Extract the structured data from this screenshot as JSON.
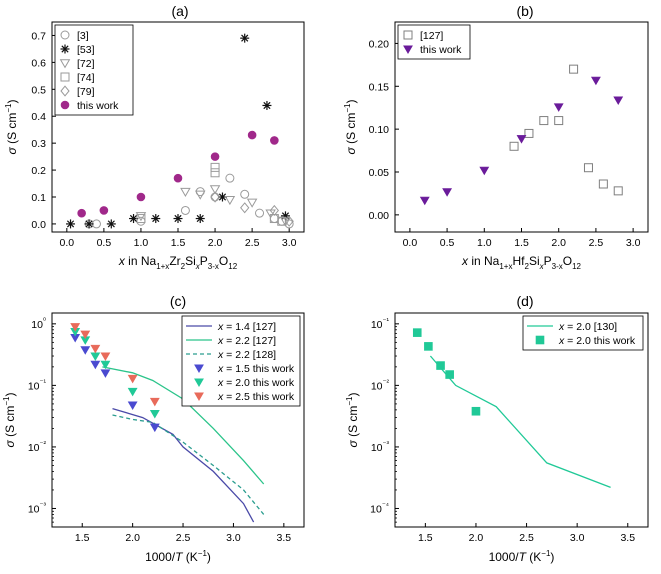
{
  "chart_data": [
    {
      "panel": "(a)",
      "type": "scatter",
      "ylabel": "σ (S cm⁻¹)",
      "xlabel": "x in Na1+xZr2SixP3-xO12",
      "xlim": [
        -0.2,
        3.2
      ],
      "ylim": [
        -0.03,
        0.75
      ],
      "xticks": [
        0.0,
        0.5,
        1.0,
        1.5,
        2.0,
        2.5,
        3.0
      ],
      "yticks": [
        0.0,
        0.1,
        0.2,
        0.3,
        0.4,
        0.5,
        0.6,
        0.7
      ],
      "legend_position": "top-left",
      "series": [
        {
          "name": "[3]",
          "marker": "circle-open",
          "color": "#9a9a9a",
          "points": [
            [
              0.3,
              0.0
            ],
            [
              0.4,
              0.0
            ],
            [
              1.0,
              0.01
            ],
            [
              1.6,
              0.05
            ],
            [
              1.8,
              0.12
            ],
            [
              2.0,
              0.1
            ],
            [
              2.2,
              0.17
            ],
            [
              2.4,
              0.11
            ],
            [
              2.6,
              0.04
            ],
            [
              2.8,
              0.02
            ],
            [
              2.9,
              0.01
            ],
            [
              3.0,
              0.0
            ]
          ]
        },
        {
          "name": "[53]",
          "marker": "asterisk",
          "color": "#111111",
          "points": [
            [
              0.05,
              0.0
            ],
            [
              0.3,
              0.0
            ],
            [
              0.6,
              0.0
            ],
            [
              0.9,
              0.02
            ],
            [
              1.2,
              0.02
            ],
            [
              1.5,
              0.02
            ],
            [
              1.8,
              0.02
            ],
            [
              2.1,
              0.1
            ],
            [
              2.4,
              0.69
            ],
            [
              2.7,
              0.44
            ],
            [
              2.95,
              0.03
            ]
          ]
        },
        {
          "name": "[72]",
          "marker": "triangle-down-open",
          "color": "#9a9a9a",
          "points": [
            [
              1.0,
              0.03
            ],
            [
              1.6,
              0.12
            ],
            [
              1.8,
              0.11
            ],
            [
              2.0,
              0.13
            ],
            [
              2.2,
              0.09
            ],
            [
              2.5,
              0.08
            ],
            [
              2.75,
              0.04
            ],
            [
              2.95,
              0.01
            ]
          ]
        },
        {
          "name": "[74]",
          "marker": "square-open",
          "color": "#9a9a9a",
          "points": [
            [
              1.0,
              0.02
            ],
            [
              2.0,
              0.21
            ],
            [
              2.0,
              0.19
            ],
            [
              2.8,
              0.02
            ],
            [
              2.9,
              0.01
            ]
          ]
        },
        {
          "name": "[79]",
          "marker": "diamond-open",
          "color": "#9a9a9a",
          "points": [
            [
              2.0,
              0.1
            ],
            [
              2.4,
              0.06
            ],
            [
              2.8,
              0.05
            ],
            [
              3.0,
              0.01
            ]
          ]
        },
        {
          "name": "this work",
          "marker": "circle-filled",
          "color": "#a0288a",
          "points": [
            [
              0.2,
              0.04
            ],
            [
              0.5,
              0.05
            ],
            [
              1.0,
              0.1
            ],
            [
              1.5,
              0.17
            ],
            [
              2.0,
              0.25
            ],
            [
              2.5,
              0.33
            ],
            [
              2.8,
              0.31
            ]
          ]
        }
      ]
    },
    {
      "panel": "(b)",
      "type": "scatter",
      "ylabel": "σ (S cm⁻¹)",
      "xlabel": "x in Na1+xHf2SixP3-xO12",
      "xlim": [
        -0.2,
        3.2
      ],
      "ylim": [
        -0.02,
        0.225
      ],
      "xticks": [
        0.0,
        0.5,
        1.0,
        1.5,
        2.0,
        2.5,
        3.0
      ],
      "yticks": [
        0.0,
        0.05,
        0.1,
        0.15,
        0.2
      ],
      "legend_position": "top-left",
      "series": [
        {
          "name": "[127]",
          "marker": "square-open",
          "color": "#7f7f7f",
          "points": [
            [
              1.4,
              0.08
            ],
            [
              1.6,
              0.095
            ],
            [
              1.8,
              0.11
            ],
            [
              2.0,
              0.11
            ],
            [
              2.2,
              0.17
            ],
            [
              2.4,
              0.055
            ],
            [
              2.6,
              0.036
            ],
            [
              2.8,
              0.028
            ]
          ]
        },
        {
          "name": "this work",
          "marker": "triangle-down-filled",
          "color": "#6a1b9a",
          "points": [
            [
              0.2,
              0.017
            ],
            [
              0.5,
              0.027
            ],
            [
              1.0,
              0.052
            ],
            [
              1.5,
              0.089
            ],
            [
              2.0,
              0.126
            ],
            [
              2.5,
              0.157
            ],
            [
              2.8,
              0.134
            ]
          ]
        }
      ]
    },
    {
      "panel": "(c)",
      "type": "line",
      "yscale": "log",
      "ylabel": "σ (S cm⁻¹)",
      "xlabel": "1000/T (K⁻¹)",
      "xlim": [
        1.2,
        3.7
      ],
      "ylim": [
        0.0005,
        1.5
      ],
      "xticks": [
        1.5,
        2.0,
        2.5,
        3.0,
        3.5
      ],
      "yticks": [
        0.001,
        0.01,
        0.1,
        1
      ],
      "ytick_labels": [
        "10⁻³",
        "10⁻²",
        "10⁻¹",
        "10⁰"
      ],
      "legend_position": "top-right",
      "series": [
        {
          "name": "x = 1.4 [127]",
          "style": "line",
          "color": "#4a4aa8",
          "points": [
            [
              1.8,
              0.042
            ],
            [
              2.1,
              0.03
            ],
            [
              2.4,
              0.016
            ],
            [
              2.5,
              0.01
            ],
            [
              2.8,
              0.004
            ],
            [
              3.1,
              0.0012
            ],
            [
              3.2,
              0.0006
            ]
          ]
        },
        {
          "name": "x = 2.2 [127]",
          "style": "line",
          "color": "#2bc48a",
          "points": [
            [
              1.7,
              0.2
            ],
            [
              2.0,
              0.16
            ],
            [
              2.2,
              0.12
            ],
            [
              2.5,
              0.06
            ],
            [
              2.8,
              0.02
            ],
            [
              3.1,
              0.006
            ],
            [
              3.3,
              0.0025
            ]
          ]
        },
        {
          "name": "x = 2.2 [128]",
          "style": "dashed",
          "color": "#2a9d8f",
          "points": [
            [
              1.8,
              0.033
            ],
            [
              2.0,
              0.028
            ],
            [
              2.2,
              0.025
            ],
            [
              2.5,
              0.012
            ],
            [
              2.8,
              0.005
            ],
            [
              3.1,
              0.002
            ],
            [
              3.3,
              0.0008
            ]
          ]
        },
        {
          "name": "x = 1.5 this work",
          "style": "marker",
          "marker": "triangle-down-filled",
          "color": "#4a4ad0",
          "points": [
            [
              1.43,
              0.6
            ],
            [
              1.53,
              0.38
            ],
            [
              1.63,
              0.22
            ],
            [
              1.73,
              0.16
            ],
            [
              2.0,
              0.048
            ],
            [
              2.22,
              0.021
            ]
          ]
        },
        {
          "name": "x = 2.0 this work",
          "style": "marker",
          "marker": "triangle-down-filled",
          "color": "#20c997",
          "points": [
            [
              1.43,
              0.75
            ],
            [
              1.53,
              0.55
            ],
            [
              1.63,
              0.3
            ],
            [
              1.73,
              0.22
            ],
            [
              2.0,
              0.08
            ],
            [
              2.22,
              0.035
            ]
          ]
        },
        {
          "name": "x = 2.5 this work",
          "style": "marker",
          "marker": "triangle-down-filled",
          "color": "#e86a5a",
          "points": [
            [
              1.43,
              0.9
            ],
            [
              1.53,
              0.68
            ],
            [
              1.63,
              0.4
            ],
            [
              1.73,
              0.3
            ],
            [
              2.0,
              0.13
            ],
            [
              2.22,
              0.055
            ]
          ]
        }
      ]
    },
    {
      "panel": "(d)",
      "type": "line",
      "yscale": "log",
      "ylabel": "σ (S cm⁻¹)",
      "xlabel": "1000/T (K⁻¹)",
      "xlim": [
        1.2,
        3.7
      ],
      "ylim": [
        5e-05,
        0.15
      ],
      "xticks": [
        1.5,
        2.0,
        2.5,
        3.0,
        3.5
      ],
      "yticks": [
        0.0001,
        0.001,
        0.01,
        0.1
      ],
      "ytick_labels": [
        "10⁻⁴",
        "10⁻³",
        "10⁻²",
        "10⁻¹"
      ],
      "legend_position": "top-right",
      "series": [
        {
          "name": "x = 2.0 [130]",
          "style": "line",
          "color": "#20c997",
          "points": [
            [
              1.55,
              0.03
            ],
            [
              1.8,
              0.01
            ],
            [
              2.2,
              0.0045
            ],
            [
              2.7,
              0.00055
            ],
            [
              3.33,
              0.00022
            ]
          ]
        },
        {
          "name": "x = 2.0 this work",
          "style": "marker",
          "marker": "square-filled",
          "color": "#20c997",
          "points": [
            [
              1.42,
              0.072
            ],
            [
              1.53,
              0.043
            ],
            [
              1.65,
              0.021
            ],
            [
              1.74,
              0.015
            ],
            [
              2.0,
              0.0038
            ]
          ]
        }
      ]
    }
  ]
}
